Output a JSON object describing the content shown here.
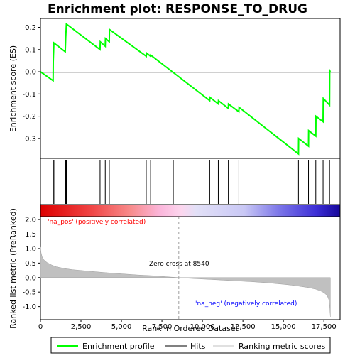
{
  "chart_data": {
    "type": "line",
    "title": "Enrichment plot: RESPONSE_TO_DRUG",
    "x_range": [
      0,
      18500
    ],
    "x_ticks": [
      0,
      2500,
      5000,
      7500,
      10000,
      12500,
      15000,
      17500
    ],
    "x_tick_labels": [
      "0",
      "2,500",
      "5,000",
      "7,500",
      "10,000",
      "12,500",
      "15,000",
      "17,500"
    ],
    "xlabel": "Rank in Ordered Dataset",
    "es_panel": {
      "ylabel": "Enrichment score (ES)",
      "ylim": [
        -0.39,
        0.24
      ],
      "y_ticks": [
        0.2,
        0.1,
        0.0,
        -0.1,
        -0.2,
        -0.3
      ],
      "y_tick_labels": [
        "0.2",
        "0.1",
        "0.0",
        "-0.1",
        "-0.2",
        "-0.3"
      ],
      "series": [
        {
          "name": "Enrichment profile",
          "color": "#00ff00",
          "x": [
            0,
            780,
            790,
            830,
            1530,
            1560,
            1600,
            3680,
            3690,
            4000,
            4010,
            4250,
            4260,
            6530,
            6540,
            6800,
            6810,
            10450,
            10460,
            10980,
            10990,
            11600,
            11610,
            12250,
            12260,
            15930,
            15940,
            16550,
            16560,
            17000,
            17010,
            17450,
            17460,
            17850,
            17860,
            17900
          ],
          "y": [
            0.0,
            -0.04,
            0.045,
            0.13,
            0.09,
            0.155,
            0.215,
            0.1,
            0.135,
            0.115,
            0.15,
            0.135,
            0.19,
            0.07,
            0.085,
            0.07,
            0.075,
            -0.13,
            -0.115,
            -0.145,
            -0.13,
            -0.165,
            -0.145,
            -0.18,
            -0.16,
            -0.37,
            -0.3,
            -0.335,
            -0.265,
            -0.29,
            -0.2,
            -0.225,
            -0.12,
            -0.15,
            0.005,
            0.0
          ]
        }
      ]
    },
    "hits": {
      "name": "Hits",
      "color": "#000000",
      "positions": [
        780,
        830,
        1530,
        1560,
        1600,
        3680,
        4000,
        4250,
        6530,
        6800,
        8200,
        10450,
        10980,
        11600,
        12250,
        15930,
        16550,
        17000,
        17450,
        17850
      ]
    },
    "metric_panel": {
      "ylabel": "Ranked list metric (PreRanked)",
      "ylim": [
        -1.45,
        2.1
      ],
      "y_ticks": [
        2.0,
        1.5,
        1.0,
        0.5,
        0.0,
        -0.5,
        -1.0
      ],
      "y_tick_labels": [
        "2.0",
        "1.5",
        "1.0",
        "0.5",
        "0.0",
        "-0.5",
        "-1.0"
      ],
      "series": [
        {
          "name": "Ranking metric scores",
          "color": "#c0c0c0",
          "x": [
            0,
            40,
            100,
            200,
            400,
            700,
            1000,
            1500,
            2000,
            3000,
            4000,
            5000,
            6000,
            7000,
            8000,
            8540,
            9000,
            10000,
            11000,
            12000,
            13000,
            14000,
            15000,
            15500,
            16000,
            16500,
            17000,
            17300,
            17500,
            17700,
            17800,
            17850,
            17900
          ],
          "y": [
            1.05,
            0.85,
            0.72,
            0.62,
            0.52,
            0.43,
            0.37,
            0.31,
            0.27,
            0.22,
            0.17,
            0.13,
            0.09,
            0.06,
            0.02,
            0.0,
            -0.02,
            -0.05,
            -0.08,
            -0.11,
            -0.14,
            -0.18,
            -0.23,
            -0.26,
            -0.3,
            -0.34,
            -0.4,
            -0.46,
            -0.52,
            -0.62,
            -0.75,
            -0.95,
            -1.35
          ]
        }
      ],
      "zero_cross_label": "Zero cross at 8540",
      "zero_cross_x": 8540,
      "pos_label": "'na_pos' (positively correlated)",
      "pos_color": "#ff0000",
      "neg_label": "'na_neg' (negatively correlated)",
      "neg_color": "#0000ff"
    },
    "legend": {
      "placement": "bottom",
      "items": [
        {
          "label": "Enrichment profile",
          "color": "#00ff00"
        },
        {
          "label": "Hits",
          "color": "#000000"
        },
        {
          "label": "Ranking metric scores",
          "color": "#c0c0c0"
        }
      ]
    }
  }
}
